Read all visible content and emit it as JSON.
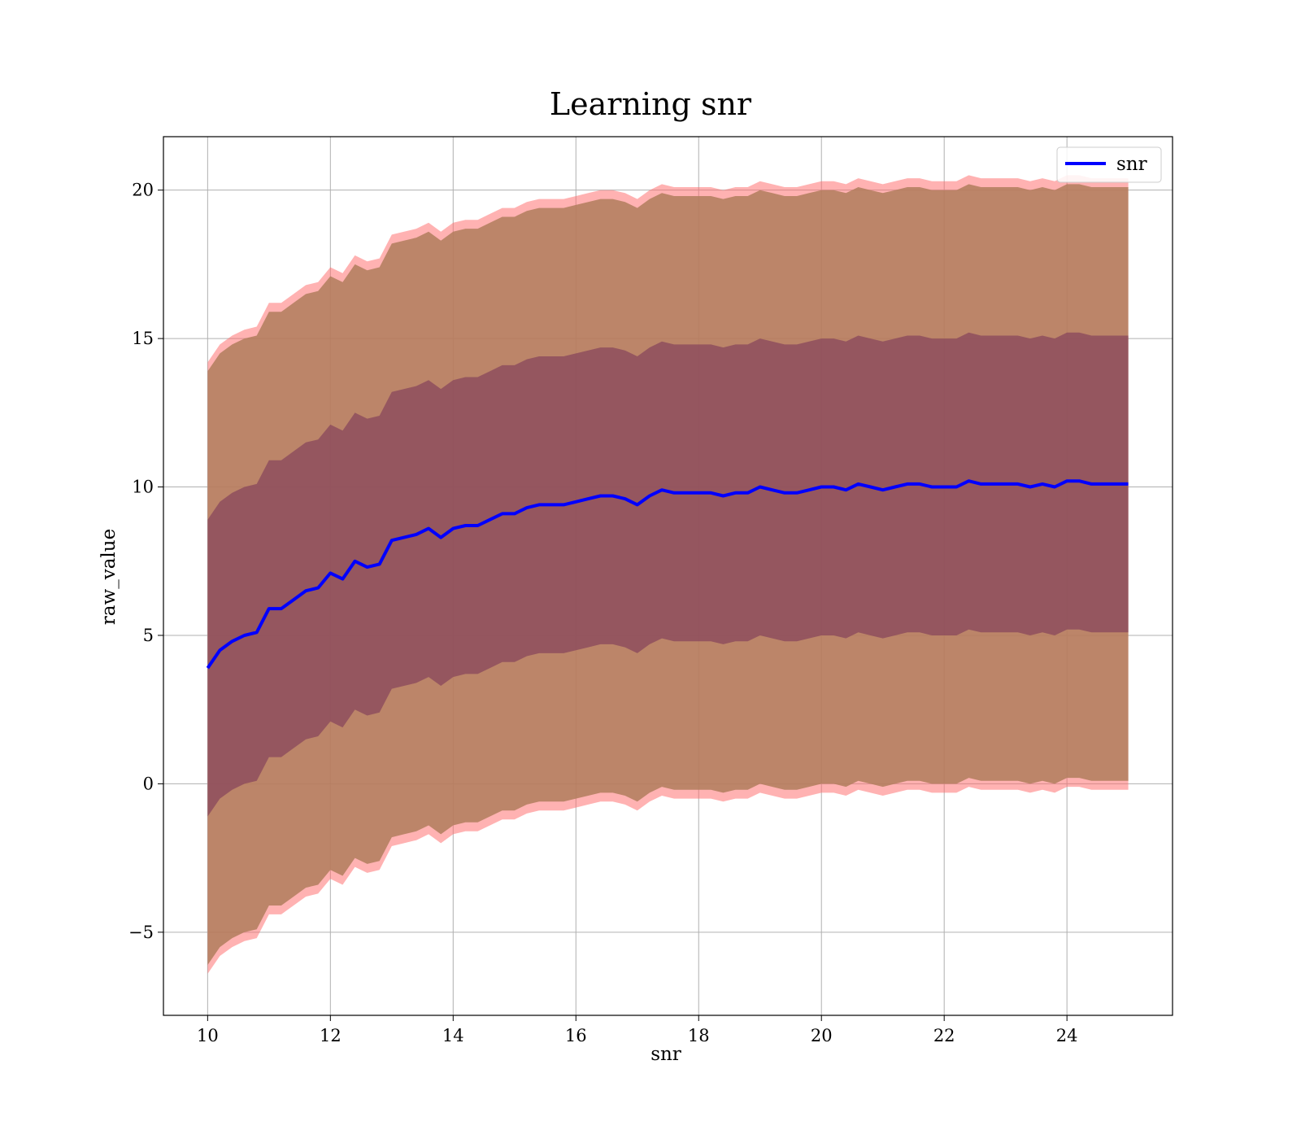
{
  "chart_data": {
    "type": "area",
    "title": "Learning snr",
    "xlabel": "snr",
    "ylabel": "raw_value",
    "xlim": [
      9.28,
      25.72
    ],
    "ylim": [
      -7.8,
      21.8
    ],
    "x_ticks": [
      10,
      12,
      14,
      16,
      18,
      20,
      22,
      24
    ],
    "x_tick_labels": [
      "10",
      "12",
      "14",
      "16",
      "18",
      "20",
      "22",
      "24"
    ],
    "y_ticks": [
      -5,
      0,
      5,
      10,
      15,
      20
    ],
    "y_tick_labels": [
      "−5",
      "0",
      "5",
      "10",
      "15",
      "20"
    ],
    "grid": true,
    "legend": {
      "position": "top-right",
      "entries": [
        "snr"
      ]
    },
    "colors": {
      "line": "#0000ff",
      "band_outer": "#ff6666",
      "band_2sigma": "#b07c5c",
      "band_1sigma": "#8b4a5c",
      "grid": "#b0b0b0"
    },
    "series": [
      {
        "name": "snr",
        "x": [
          10.0,
          10.2,
          10.4,
          10.6,
          10.8,
          11.0,
          11.2,
          11.4,
          11.6,
          11.8,
          12.0,
          12.2,
          12.4,
          12.6,
          12.8,
          13.0,
          13.2,
          13.4,
          13.6,
          13.8,
          14.0,
          14.2,
          14.4,
          14.6,
          14.8,
          15.0,
          15.2,
          15.4,
          15.6,
          15.8,
          16.0,
          16.2,
          16.4,
          16.6,
          16.8,
          17.0,
          17.2,
          17.4,
          17.6,
          17.8,
          18.0,
          18.2,
          18.4,
          18.6,
          18.8,
          19.0,
          19.2,
          19.4,
          19.6,
          19.8,
          20.0,
          20.2,
          20.4,
          20.6,
          20.8,
          21.0,
          21.2,
          21.4,
          21.6,
          21.8,
          22.0,
          22.2,
          22.4,
          22.6,
          22.8,
          23.0,
          23.2,
          23.4,
          23.6,
          23.8,
          24.0,
          24.2,
          24.4,
          24.6,
          24.8,
          25.0
        ],
        "y": [
          3.9,
          4.5,
          4.8,
          5.0,
          5.1,
          5.9,
          5.9,
          6.2,
          6.5,
          6.6,
          7.1,
          6.9,
          7.5,
          7.3,
          7.4,
          8.2,
          8.3,
          8.4,
          8.6,
          8.3,
          8.6,
          8.7,
          8.7,
          8.9,
          9.1,
          9.1,
          9.3,
          9.4,
          9.4,
          9.4,
          9.5,
          9.6,
          9.7,
          9.7,
          9.6,
          9.4,
          9.7,
          9.9,
          9.8,
          9.8,
          9.8,
          9.8,
          9.7,
          9.8,
          9.8,
          10.0,
          9.9,
          9.8,
          9.8,
          9.9,
          10.0,
          10.0,
          9.9,
          10.1,
          10.0,
          9.9,
          10.0,
          10.1,
          10.1,
          10.0,
          10.0,
          10.0,
          10.2,
          10.1,
          10.1,
          10.1,
          10.1,
          10.0,
          10.1,
          10.0,
          10.2,
          10.2,
          10.1,
          10.1,
          10.1,
          10.1
        ],
        "band_1sigma_halfwidth": 5.0,
        "band_2sigma_halfwidth": 10.0,
        "band_outer_halfwidth": 10.3
      }
    ]
  }
}
